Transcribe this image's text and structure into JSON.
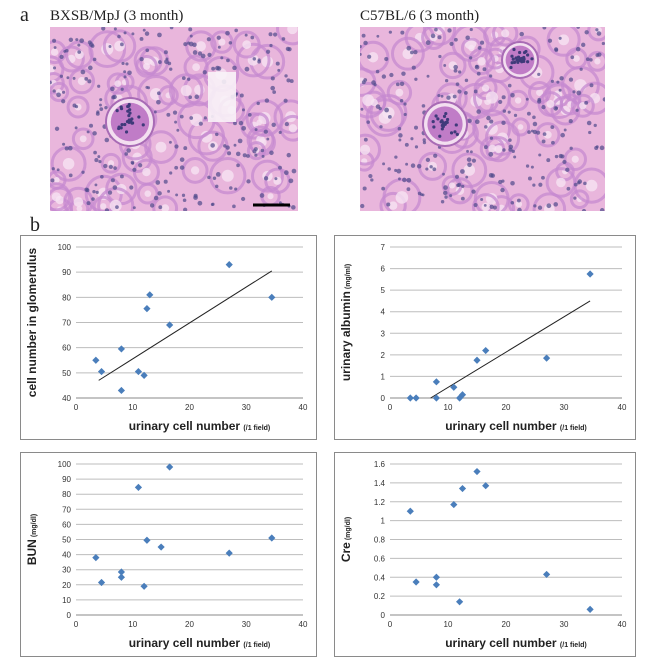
{
  "panel_a": {
    "letter": "a",
    "left_caption": "BXSB/MpJ (3 month)",
    "right_caption": "C57BL/6 (3 month)"
  },
  "panel_b": {
    "letter": "b"
  },
  "colors": {
    "marker": "#4a7ebb",
    "tissue_bg": "#e9b6dc",
    "tubule": "#c58ad0",
    "nuclei": "#4f4a8a"
  },
  "chart_data": [
    {
      "type": "scatter",
      "ylabel": "cell number in glomerulus",
      "xlabel": "urinary cell number",
      "xlabel_unit": "(/1 field)",
      "xlim": [
        0,
        40
      ],
      "ylim": [
        40,
        100
      ],
      "xticks": [
        0,
        10,
        20,
        30,
        40
      ],
      "yticks": [
        40,
        50,
        60,
        70,
        80,
        90,
        100
      ],
      "x": [
        3.5,
        4.5,
        8,
        8,
        11,
        12,
        12.5,
        13,
        16.5,
        27,
        34.5
      ],
      "y": [
        55,
        50.5,
        59.5,
        43,
        50.5,
        49,
        75.5,
        81,
        69,
        93,
        80
      ],
      "trendline": {
        "x": [
          4,
          34.5
        ],
        "y": [
          47,
          90.5
        ]
      },
      "grid": true
    },
    {
      "type": "scatter",
      "ylabel": "urinary albumin",
      "ylabel_unit": "(mg/ml)",
      "xlabel": "urinary cell number",
      "xlabel_unit": "(/1 field)",
      "xlim": [
        0,
        40
      ],
      "ylim": [
        0,
        7
      ],
      "xticks": [
        0,
        10,
        20,
        30,
        40
      ],
      "yticks": [
        0,
        1,
        2,
        3,
        4,
        5,
        6,
        7
      ],
      "x": [
        3.5,
        4.5,
        8,
        8,
        11,
        12,
        12.5,
        15,
        16.5,
        27,
        34.5
      ],
      "y": [
        0,
        0,
        0.75,
        0,
        0.5,
        0,
        0.15,
        1.75,
        2.2,
        1.85,
        5.75
      ],
      "trendline": {
        "x": [
          7,
          34.5
        ],
        "y": [
          0,
          4.5
        ]
      },
      "grid": true
    },
    {
      "type": "scatter",
      "ylabel": "BUN",
      "ylabel_unit": "(mg/dl)",
      "xlabel": "urinary cell number",
      "xlabel_unit": "(/1 field)",
      "xlim": [
        0,
        40
      ],
      "ylim": [
        0,
        100
      ],
      "xticks": [
        0,
        10,
        20,
        30,
        40
      ],
      "yticks": [
        0,
        10,
        20,
        30,
        40,
        50,
        60,
        70,
        80,
        90,
        100
      ],
      "x": [
        3.5,
        4.5,
        8,
        8,
        11,
        12,
        12.5,
        15,
        16.5,
        27,
        34.5
      ],
      "y": [
        38,
        21.5,
        28.5,
        25,
        84.5,
        19,
        49.5,
        45,
        98,
        41,
        51
      ],
      "grid": true
    },
    {
      "type": "scatter",
      "ylabel": "Cre",
      "ylabel_unit": "(mg/dl)",
      "xlabel": "urinary cell number",
      "xlabel_unit": "(/1 field)",
      "xlim": [
        0,
        40
      ],
      "ylim": [
        0,
        1.6
      ],
      "xticks": [
        0,
        10,
        20,
        30,
        40
      ],
      "yticks": [
        0,
        0.2,
        0.4,
        0.6,
        0.8,
        1,
        1.2,
        1.4,
        1.6
      ],
      "x": [
        3.5,
        4.5,
        8,
        8,
        11,
        12,
        12.5,
        15,
        16.5,
        27,
        34.5
      ],
      "y": [
        1.1,
        0.35,
        0.4,
        0.32,
        1.17,
        0.14,
        1.34,
        1.52,
        1.37,
        0.43,
        0.06
      ],
      "grid": true
    }
  ]
}
